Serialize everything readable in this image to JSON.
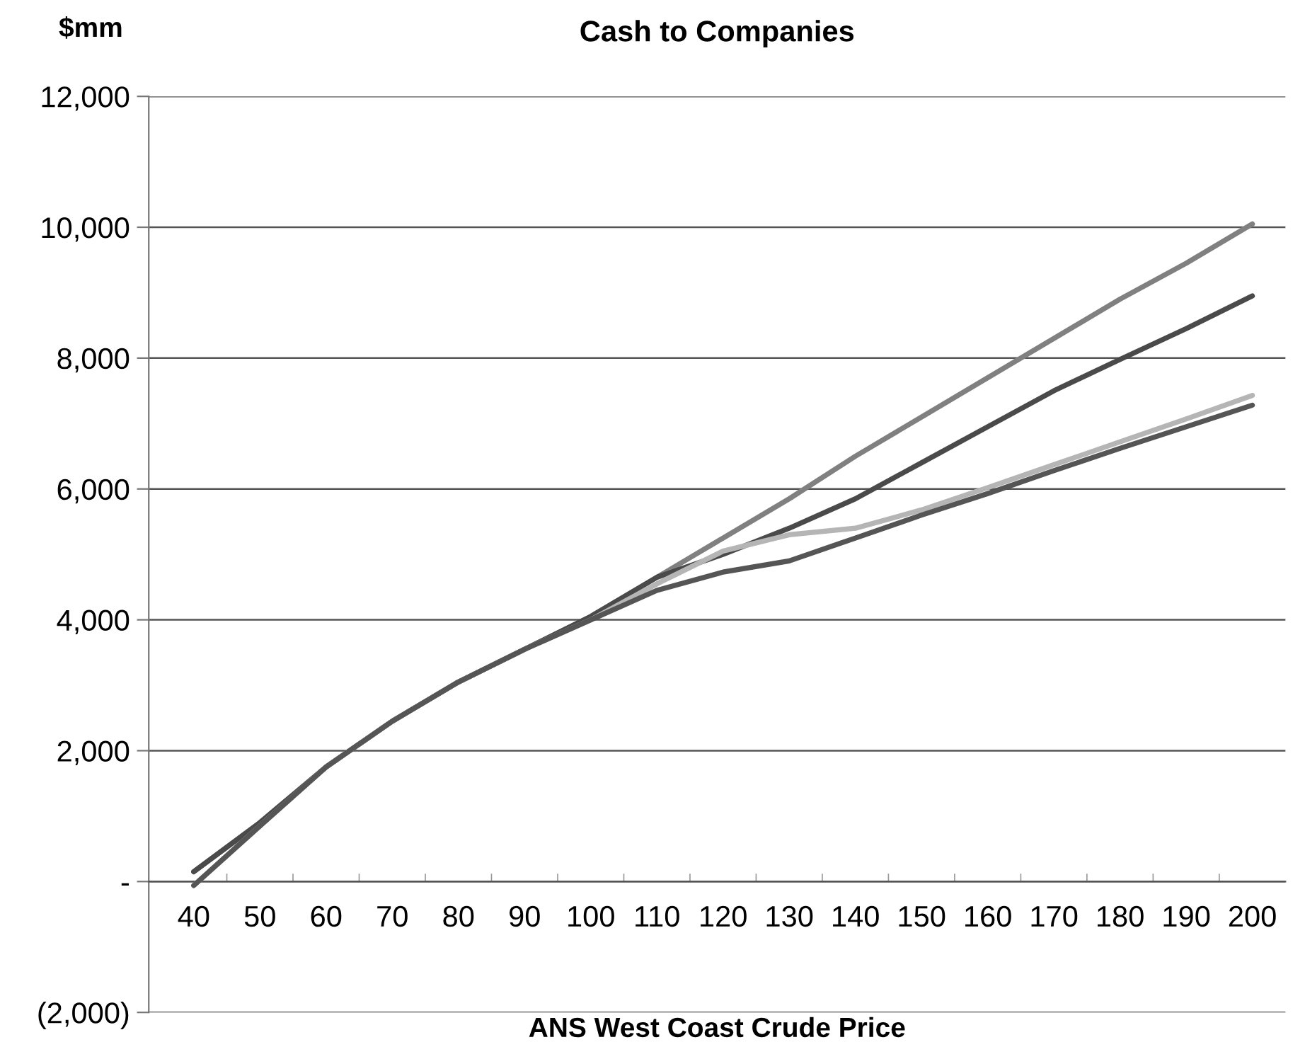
{
  "chart_data": {
    "type": "line",
    "title": "Cash to Companies",
    "ylabel": "$mm",
    "xlabel": "ANS West Coast Crude Price",
    "categories": [
      "40",
      "50",
      "60",
      "70",
      "80",
      "90",
      "100",
      "110",
      "120",
      "130",
      "140",
      "150",
      "160",
      "170",
      "180",
      "190",
      "200"
    ],
    "series": [
      {
        "color": "#808080",
        "values": [
          150,
          900,
          1750,
          2450,
          3050,
          3550,
          4050,
          4650,
          5250,
          5850,
          6500,
          7100,
          7700,
          8300,
          8900,
          9450,
          10050
        ]
      },
      {
        "color": "#4a4a4a",
        "values": [
          150,
          900,
          1750,
          2450,
          3050,
          3550,
          4050,
          4650,
          5000,
          5400,
          5850,
          6400,
          6950,
          7500,
          7980,
          8450,
          8950
        ]
      },
      {
        "color": "#b5b5b5",
        "values": [
          -60,
          850,
          1750,
          2450,
          3050,
          3550,
          4000,
          4550,
          5050,
          5300,
          5400,
          5680,
          6020,
          6370,
          6720,
          7070,
          7430
        ]
      },
      {
        "color": "#555555",
        "values": [
          -60,
          850,
          1750,
          2450,
          3050,
          3550,
          4000,
          4450,
          4730,
          4900,
          5250,
          5600,
          5930,
          6280,
          6620,
          6950,
          7280
        ]
      }
    ],
    "ylim": [
      -2000,
      12000
    ],
    "yticks": [
      {
        "value": -2000,
        "label": "(2,000)"
      },
      {
        "value": 0,
        "label": "-"
      },
      {
        "value": 2000,
        "label": "2,000"
      },
      {
        "value": 4000,
        "label": "4,000"
      },
      {
        "value": 6000,
        "label": "6,000"
      },
      {
        "value": 8000,
        "label": "8,000"
      },
      {
        "value": 10000,
        "label": "10,000"
      },
      {
        "value": 12000,
        "label": "12,000"
      }
    ],
    "grid": "y",
    "legend": false,
    "marker": "none",
    "line_style": "solid"
  }
}
